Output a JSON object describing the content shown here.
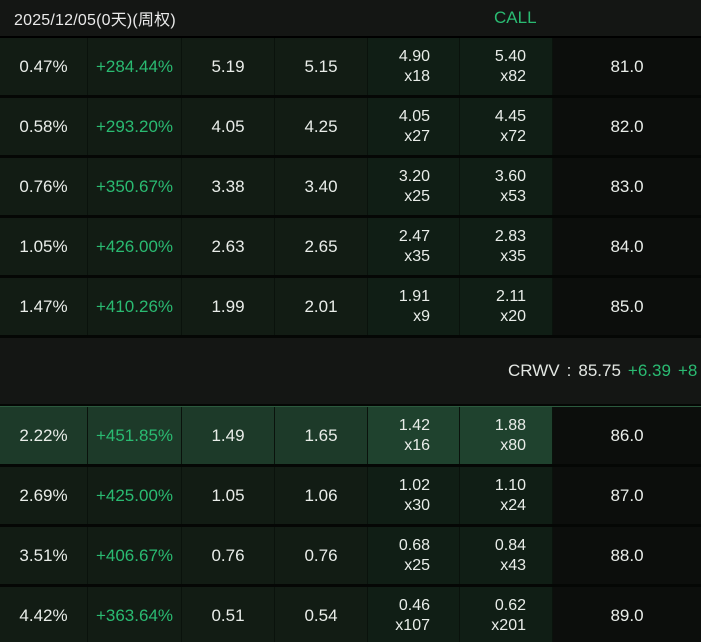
{
  "header": {
    "expiry_label": "2025/12/05(0天)(周权)",
    "call_label": "CALL"
  },
  "underlying": {
    "symbol": "CRWV",
    "separator": ":",
    "price": "85.75",
    "change": "+6.39",
    "change_pct": "+8"
  },
  "colors": {
    "up_green": "#2abb72",
    "row_bg": "#121c14",
    "bid_ask_bg": "#101e15",
    "highlight_row_bg": "#1d3a29",
    "strike_col_bg": "#0c0e0c"
  },
  "rows_above": [
    {
      "pct": "0.47%",
      "change": "+284.44%",
      "last": "5.19",
      "mid": "5.15",
      "bid": "4.90",
      "bid_size": "x18",
      "ask": "5.40",
      "ask_size": "x82",
      "strike": "81.0"
    },
    {
      "pct": "0.58%",
      "change": "+293.20%",
      "last": "4.05",
      "mid": "4.25",
      "bid": "4.05",
      "bid_size": "x27",
      "ask": "4.45",
      "ask_size": "x72",
      "strike": "82.0"
    },
    {
      "pct": "0.76%",
      "change": "+350.67%",
      "last": "3.38",
      "mid": "3.40",
      "bid": "3.20",
      "bid_size": "x25",
      "ask": "3.60",
      "ask_size": "x53",
      "strike": "83.0"
    },
    {
      "pct": "1.05%",
      "change": "+426.00%",
      "last": "2.63",
      "mid": "2.65",
      "bid": "2.47",
      "bid_size": "x35",
      "ask": "2.83",
      "ask_size": "x35",
      "strike": "84.0"
    },
    {
      "pct": "1.47%",
      "change": "+410.26%",
      "last": "1.99",
      "mid": "2.01",
      "bid": "1.91",
      "bid_size": "x9",
      "ask": "2.11",
      "ask_size": "x20",
      "strike": "85.0"
    }
  ],
  "rows_below": [
    {
      "pct": "2.22%",
      "change": "+451.85%",
      "last": "1.49",
      "mid": "1.65",
      "bid": "1.42",
      "bid_size": "x16",
      "ask": "1.88",
      "ask_size": "x80",
      "strike": "86.0",
      "highlight": true
    },
    {
      "pct": "2.69%",
      "change": "+425.00%",
      "last": "1.05",
      "mid": "1.06",
      "bid": "1.02",
      "bid_size": "x30",
      "ask": "1.10",
      "ask_size": "x24",
      "strike": "87.0"
    },
    {
      "pct": "3.51%",
      "change": "+406.67%",
      "last": "0.76",
      "mid": "0.76",
      "bid": "0.68",
      "bid_size": "x25",
      "ask": "0.84",
      "ask_size": "x43",
      "strike": "88.0"
    },
    {
      "pct": "4.42%",
      "change": "+363.64%",
      "last": "0.51",
      "mid": "0.54",
      "bid": "0.46",
      "bid_size": "x107",
      "ask": "0.62",
      "ask_size": "x201",
      "strike": "89.0"
    }
  ]
}
